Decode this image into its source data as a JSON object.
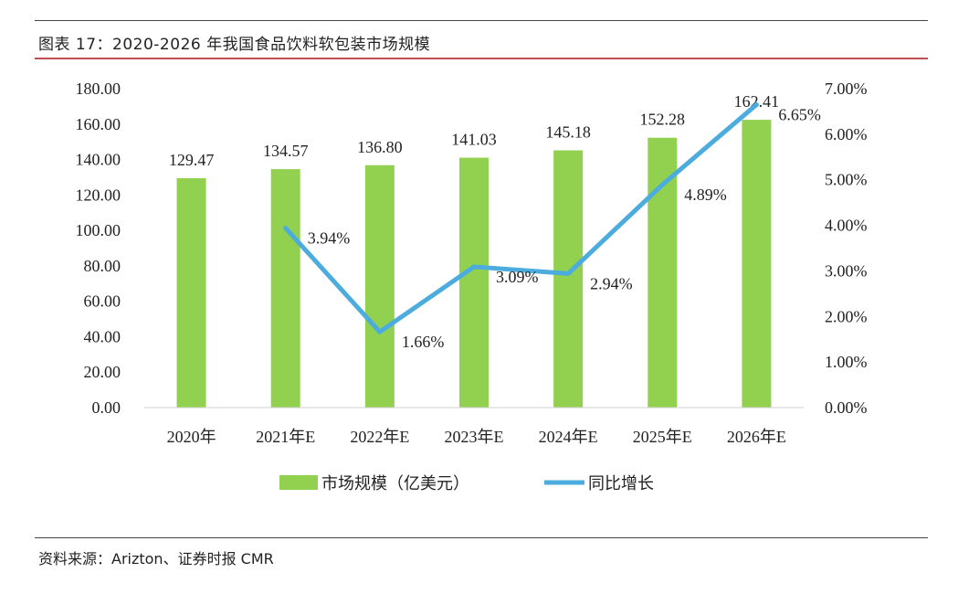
{
  "header": {
    "title": "图表 17：2020-2026 年我国食品饮料软包装市场规模"
  },
  "footer": {
    "source": "资料来源：Arizton、证券时报 CMR"
  },
  "chart_data": {
    "type": "bar",
    "categories": [
      "2020年",
      "2021年E",
      "2022年E",
      "2023年E",
      "2024年E",
      "2025年E",
      "2026年E"
    ],
    "series": [
      {
        "name": "市场规模（亿美元）",
        "type": "bar",
        "axis": "left",
        "color": "#92d050",
        "values": [
          129.47,
          134.57,
          136.8,
          141.03,
          145.18,
          152.28,
          162.41
        ],
        "labels": [
          "129.47",
          "134.57",
          "136.80",
          "141.03",
          "145.18",
          "152.28",
          "162.41"
        ]
      },
      {
        "name": "同比增长",
        "type": "line",
        "axis": "right",
        "color": "#4bacdd",
        "values": [
          null,
          3.94,
          1.66,
          3.09,
          2.94,
          4.89,
          6.65
        ],
        "labels": [
          "",
          "3.94%",
          "1.66%",
          "3.09%",
          "2.94%",
          "4.89%",
          "6.65%"
        ]
      }
    ],
    "left_axis": {
      "min": 0,
      "max": 180,
      "step": 20,
      "ticks": [
        "0.00",
        "20.00",
        "40.00",
        "60.00",
        "80.00",
        "100.00",
        "120.00",
        "140.00",
        "160.00",
        "180.00"
      ]
    },
    "right_axis": {
      "min": 0,
      "max": 7,
      "step": 1,
      "ticks": [
        "0.00%",
        "1.00%",
        "2.00%",
        "3.00%",
        "4.00%",
        "5.00%",
        "6.00%",
        "7.00%"
      ]
    },
    "legend_position": "bottom",
    "grid": false
  }
}
